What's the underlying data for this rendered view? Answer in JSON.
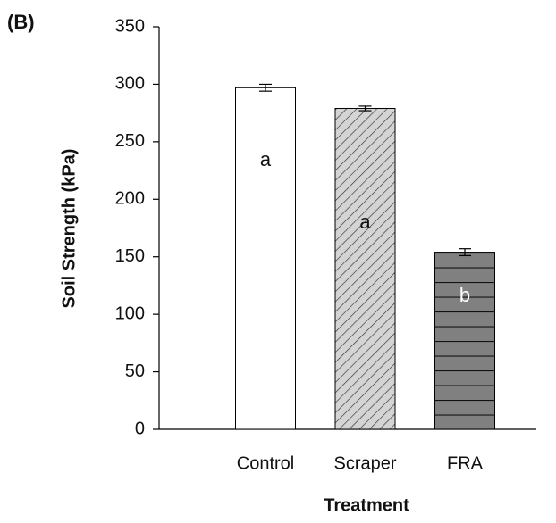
{
  "chart_data": {
    "type": "bar",
    "panel_label": "(B)",
    "x_label": "Treatment",
    "y_label": "Soil Strength (kPa)",
    "categories": [
      "Control",
      "Scraper",
      "FRA"
    ],
    "values": [
      297,
      279,
      154
    ],
    "errors": [
      3,
      2,
      3
    ],
    "letters": [
      "a",
      "a",
      "b"
    ],
    "colors": [
      "#ffffff",
      "#d4d4d4",
      "#808080"
    ],
    "hatch": [
      null,
      "diagonal",
      "horizontal"
    ],
    "ylim": [
      0,
      350
    ],
    "yticks": [
      0,
      50,
      100,
      150,
      200,
      250,
      300,
      350
    ]
  }
}
